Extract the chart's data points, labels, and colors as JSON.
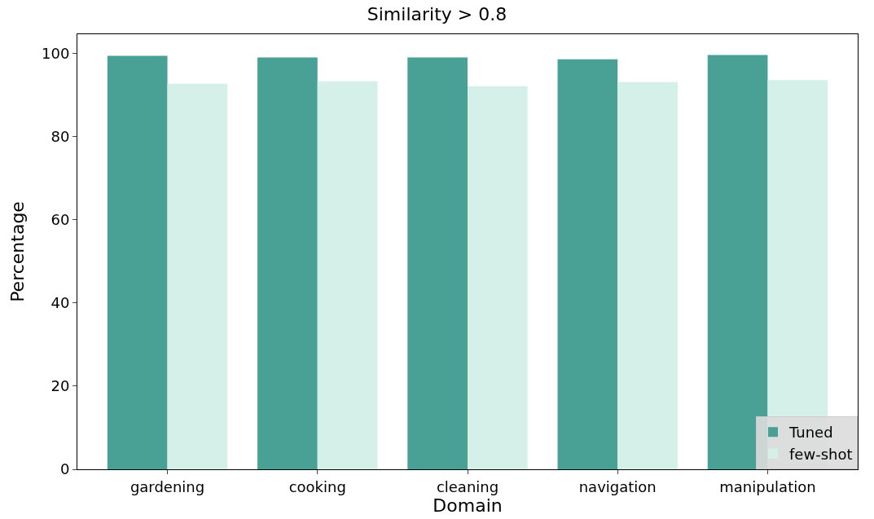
{
  "chart_data": {
    "type": "bar",
    "title": "Similarity > 0.8",
    "xlabel": "Domain",
    "ylabel": "Percentage",
    "categories": [
      "gardening",
      "cooking",
      "cleaning",
      "navigation",
      "manipulation"
    ],
    "series": [
      {
        "name": "Tuned",
        "color": "#48a194",
        "values": [
          99.4,
          99.0,
          99.0,
          98.6,
          99.6
        ]
      },
      {
        "name": "few-shot",
        "color": "#d5f0e8",
        "values": [
          92.7,
          93.3,
          92.1,
          93.1,
          93.6
        ]
      }
    ],
    "ylim": [
      0,
      104.6
    ],
    "yticks": [
      0,
      20,
      40,
      60,
      80,
      100
    ],
    "legend": "bottom right"
  }
}
